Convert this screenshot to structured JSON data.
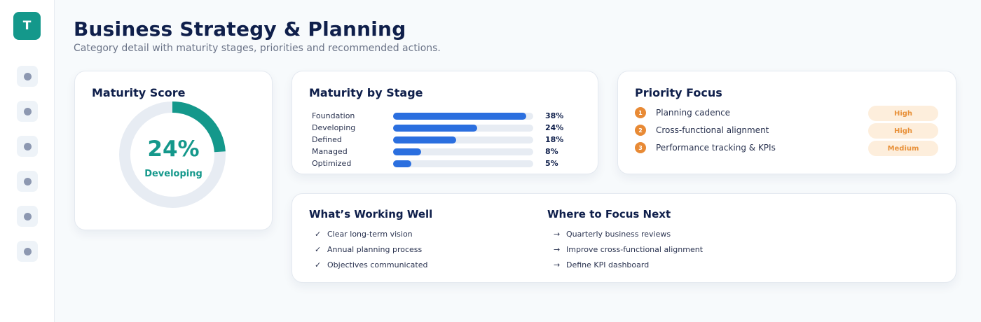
{
  "sidebar": {
    "logo": "T",
    "items": [
      "nav-1",
      "nav-2",
      "nav-3",
      "nav-4",
      "nav-5",
      "nav-6"
    ]
  },
  "header": {
    "title": "Business Strategy & Planning",
    "subtitle": "Category detail with maturity stages, priorities and recommended actions."
  },
  "score": {
    "title": "Maturity Score",
    "value": "24%",
    "fraction": 0.24,
    "label": "Developing",
    "accent": "#14988b"
  },
  "stages": {
    "title": "Maturity by Stage",
    "items": [
      {
        "name": "Foundation",
        "pct": "38%",
        "value": 0.95
      },
      {
        "name": "Developing",
        "pct": "24%",
        "value": 0.6
      },
      {
        "name": "Defined",
        "pct": "18%",
        "value": 0.45
      },
      {
        "name": "Managed",
        "pct": "8%",
        "value": 0.2
      },
      {
        "name": "Optimized",
        "pct": "5%",
        "value": 0.13
      }
    ],
    "bar_color": "#2b6fdf"
  },
  "priority": {
    "title": "Priority Focus",
    "items": [
      {
        "num": "1",
        "label": "Planning cadence",
        "badge": "High"
      },
      {
        "num": "2",
        "label": "Cross-functional alignment",
        "badge": "High"
      },
      {
        "num": "3",
        "label": "Performance tracking & KPIs",
        "badge": "Medium"
      }
    ]
  },
  "working": {
    "title": "What’s Working Well",
    "mark": "✓",
    "items": [
      "Clear long-term vision",
      "Annual planning process",
      "Objectives communicated"
    ]
  },
  "focus": {
    "title": "Where to Focus Next",
    "mark": "→",
    "items": [
      "Quarterly business reviews",
      "Improve cross-functional alignment",
      "Define KPI dashboard"
    ]
  }
}
